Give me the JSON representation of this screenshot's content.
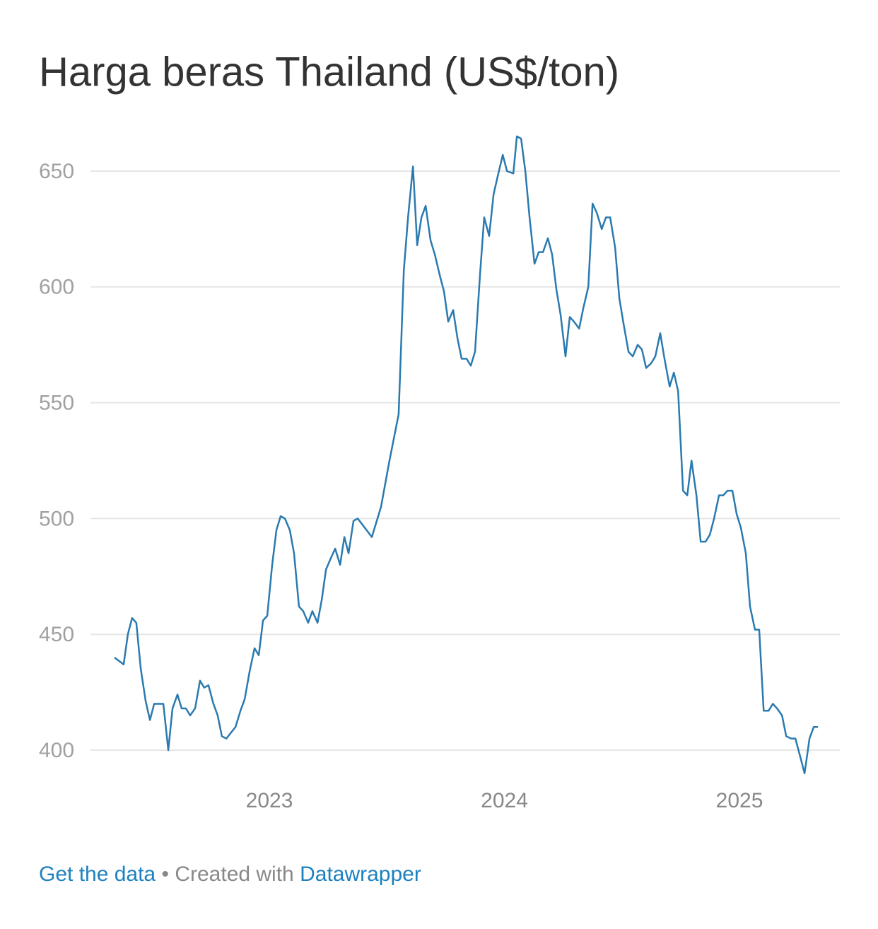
{
  "chart_data": {
    "type": "line",
    "title": "Harga beras Thailand (US$/ton)",
    "x": [
      2022.341,
      2022.38,
      2022.398,
      2022.416,
      2022.434,
      2022.453,
      2022.474,
      2022.492,
      2022.51,
      2022.549,
      2022.57,
      2022.588,
      2022.609,
      2022.627,
      2022.645,
      2022.663,
      2022.684,
      2022.705,
      2022.723,
      2022.741,
      2022.762,
      2022.78,
      2022.798,
      2022.817,
      2022.856,
      2022.877,
      2022.895,
      2022.916,
      2022.937,
      2022.955,
      2022.973,
      2022.991,
      2023.012,
      2023.03,
      2023.048,
      2023.066,
      2023.087,
      2023.105,
      2023.126,
      2023.144,
      2023.165,
      2023.183,
      2023.205,
      2023.223,
      2023.241,
      2023.262,
      2023.28,
      2023.301,
      2023.319,
      2023.337,
      2023.358,
      2023.376,
      2023.436,
      2023.475,
      2023.511,
      2023.55,
      2023.572,
      2023.59,
      2023.611,
      2023.629,
      2023.647,
      2023.665,
      2023.686,
      2023.704,
      2023.725,
      2023.743,
      2023.761,
      2023.782,
      2023.8,
      2023.818,
      2023.839,
      2023.857,
      2023.875,
      2023.896,
      2023.914,
      2023.935,
      2023.954,
      2023.972,
      2023.993,
      2024.011,
      2024.038,
      2024.053,
      2024.071,
      2024.089,
      2024.107,
      2024.128,
      2024.146,
      2024.164,
      2024.185,
      2024.203,
      2024.221,
      2024.239,
      2024.26,
      2024.278,
      2024.296,
      2024.318,
      2024.336,
      2024.357,
      2024.375,
      2024.393,
      2024.414,
      2024.432,
      2024.45,
      2024.471,
      2024.489,
      2024.507,
      2024.528,
      2024.546,
      2024.567,
      2024.585,
      2024.603,
      2024.624,
      2024.642,
      2024.663,
      2024.681,
      2024.703,
      2024.721,
      2024.739,
      2024.76,
      2024.778,
      2024.796,
      2024.817,
      2024.835,
      2024.856,
      2024.874,
      2024.892,
      2024.913,
      2024.931,
      2024.949,
      2024.97,
      2024.988,
      2025.006,
      2025.027,
      2025.045,
      2025.066,
      2025.084,
      2025.103,
      2025.124,
      2025.142,
      2025.16,
      2025.181,
      2025.199,
      2025.22,
      2025.238,
      2025.259,
      2025.277,
      2025.298,
      2025.316,
      2025.334
    ],
    "series": [
      {
        "color": "#2a7ab0",
        "values": [
          440,
          437,
          450,
          457,
          455,
          435,
          421,
          413,
          420,
          420,
          400,
          418,
          424,
          418,
          418,
          415,
          418,
          430,
          427,
          428,
          420,
          415,
          406,
          405,
          410,
          417,
          422,
          434,
          444,
          441,
          456,
          458,
          480,
          495,
          501,
          500,
          495,
          485,
          462,
          460,
          455,
          460,
          455,
          465,
          478,
          483,
          487,
          480,
          492,
          485,
          499,
          500,
          492,
          505,
          525,
          545,
          607,
          630,
          652,
          618,
          630,
          635,
          620,
          614,
          605,
          598,
          585,
          590,
          578,
          569,
          569,
          566,
          572,
          605,
          630,
          622,
          640,
          648,
          657,
          650,
          649,
          665,
          664,
          650,
          630,
          610,
          615,
          615,
          621,
          614,
          599,
          588,
          570,
          587,
          585,
          582,
          591,
          600,
          636,
          632,
          625,
          630,
          630,
          617,
          595,
          584,
          572,
          570,
          575,
          573,
          565,
          567,
          570,
          580,
          569,
          557,
          563,
          555,
          512,
          510,
          525,
          510,
          490,
          490,
          493,
          500,
          510,
          510,
          512,
          512,
          502,
          496,
          485,
          462,
          452,
          452,
          417,
          417,
          420,
          418,
          415,
          406,
          405,
          405,
          397,
          390,
          405,
          410,
          410
        ]
      }
    ],
    "xlim": [
      2022.239,
      2025.427
    ],
    "xticks": [
      2023,
      2024,
      2025
    ],
    "ylim": [
      400,
      650
    ],
    "yticks": [
      400,
      450,
      500,
      550,
      600,
      650
    ],
    "grid": true
  },
  "footer": {
    "link": "Get the data",
    "separator": "•",
    "text": "Created with",
    "brand": "Datawrapper"
  }
}
